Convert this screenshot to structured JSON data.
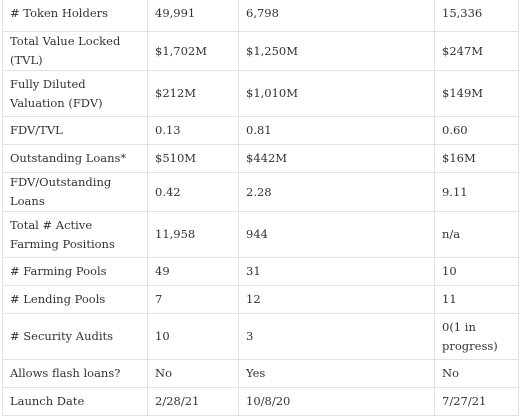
{
  "table": {
    "rows": [
      [
        "# Token Holders",
        "49,991",
        "6,798",
        "15,336"
      ],
      [
        "Total Value Locked (TVL)",
        "$1,702M",
        "$1,250M",
        "$247M"
      ],
      [
        "Fully Diluted Valuation (FDV)",
        "$212M",
        "$1,010M",
        "$149M"
      ],
      [
        "FDV/TVL",
        "0.13",
        "0.81",
        "0.60"
      ],
      [
        "Outstanding Loans*",
        "$510M",
        "$442M",
        "$16M"
      ],
      [
        "FDV/Outstanding Loans",
        "0.42",
        "2.28",
        "9.11"
      ],
      [
        "Total # Active Farming Positions",
        "11,958",
        "944",
        "n/a"
      ],
      [
        "# Farming Pools",
        "49",
        "31",
        "10"
      ],
      [
        "# Lending Pools",
        "7",
        "12",
        "11"
      ],
      [
        "# Security Audits",
        "10",
        "3",
        "0(1 in progress)"
      ],
      [
        "Allows flash loans?",
        "No",
        "Yes",
        "No"
      ],
      [
        "Launch Date",
        "2/28/21",
        "10/8/20",
        "7/27/21"
      ]
    ]
  }
}
